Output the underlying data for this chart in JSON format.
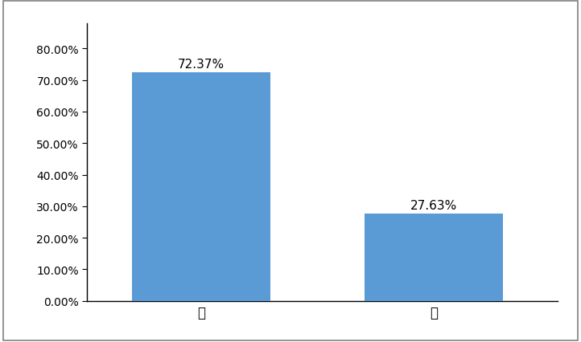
{
  "categories": [
    "是",
    "否"
  ],
  "values": [
    0.7237,
    0.2763
  ],
  "bar_color": "#5B9BD5",
  "bar_labels": [
    "72.37%",
    "27.63%"
  ],
  "ylim": [
    0,
    0.88
  ],
  "yticks": [
    0.0,
    0.1,
    0.2,
    0.3,
    0.4,
    0.5,
    0.6,
    0.7,
    0.8
  ],
  "ytick_labels": [
    "0.00%",
    "10.00%",
    "20.00%",
    "30.00%",
    "40.00%",
    "50.00%",
    "60.00%",
    "70.00%",
    "80.00%"
  ],
  "background_color": "#ffffff",
  "bar_width": 0.28,
  "label_fontsize": 11,
  "tick_fontsize": 10,
  "category_fontsize": 12,
  "spine_color": "#000000",
  "border_color": "#808080",
  "x_positions": [
    0.25,
    0.72
  ]
}
